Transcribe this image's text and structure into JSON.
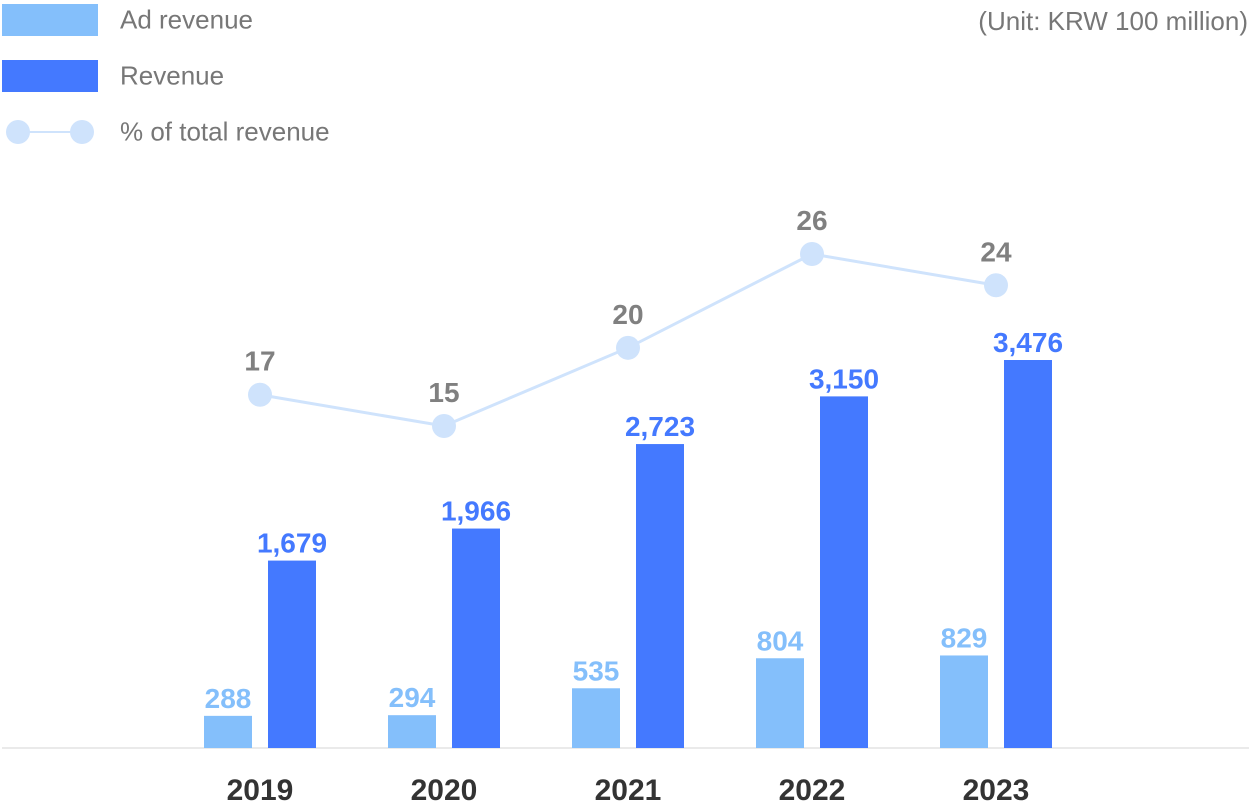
{
  "chart_data": {
    "type": "bar",
    "title": "",
    "unit_note": "(Unit: KRW 100 million)",
    "categories": [
      "2019",
      "2020",
      "2021",
      "2022",
      "2023"
    ],
    "series": [
      {
        "name": "Ad revenue",
        "type": "bar",
        "color": "#84BFFB",
        "label_color": "#84BFFB",
        "values": [
          288,
          294,
          535,
          804,
          829
        ],
        "labels": [
          "288",
          "294",
          "535",
          "804",
          "829"
        ]
      },
      {
        "name": "Revenue",
        "type": "bar",
        "color": "#4479FF",
        "label_color": "#4479FF",
        "values": [
          1679,
          1966,
          2723,
          3150,
          3476
        ],
        "labels": [
          "1,679",
          "1,966",
          "2,723",
          "3,150",
          "3,476"
        ]
      },
      {
        "name": "% of total revenue",
        "type": "line",
        "color": "#CFE3FC",
        "label_color": "#808080",
        "values": [
          17,
          15,
          20,
          26,
          24
        ],
        "labels": [
          "17",
          "15",
          "20",
          "26",
          "24"
        ]
      }
    ],
    "legend": {
      "position": "top-left",
      "items": [
        "Ad revenue",
        "Revenue",
        "% of total revenue"
      ]
    },
    "grid": false,
    "colors": {
      "axis": "#EAEAEA",
      "category_label": "#333333"
    }
  }
}
